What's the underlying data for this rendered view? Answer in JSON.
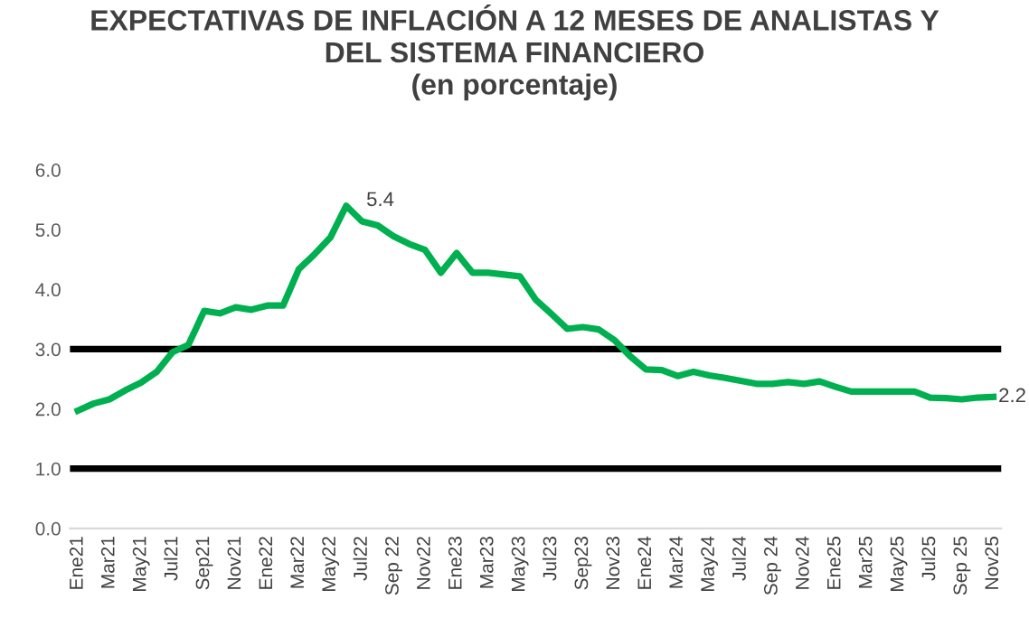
{
  "chart_data": {
    "type": "line",
    "title": "EXPECTATIVAS DE INFLACIÓN A 12 MESES DE ANALISTAS Y\nDEL SISTEMA FINANCIERO\n(en porcentaje)",
    "categories": [
      "Ene21",
      null,
      "Mar21",
      null,
      "May21",
      null,
      "Jul21",
      null,
      "Sep21",
      null,
      "Nov21",
      null,
      "Ene22",
      null,
      "Mar22",
      null,
      "May22",
      null,
      "Jul22",
      null,
      "Sep 22",
      null,
      "Nov22",
      null,
      "Ene23",
      null,
      "Mar23",
      null,
      "May23",
      null,
      "Jul23",
      null,
      "Sep23",
      null,
      "Nov23",
      null,
      "Ene24",
      null,
      "Mar24",
      null,
      "May24",
      null,
      "Jul24",
      null,
      "Sep 24",
      null,
      "Nov24",
      null,
      "Ene25",
      null,
      "Mar25",
      null,
      "May25",
      null,
      "Jul25",
      null,
      "Sep 25",
      null,
      "Nov25"
    ],
    "series": [
      {
        "color": "#00b050",
        "values": [
          1.97,
          2.09,
          2.16,
          2.31,
          2.44,
          2.62,
          2.95,
          3.07,
          3.64,
          3.6,
          3.7,
          3.66,
          3.73,
          3.73,
          4.34,
          4.59,
          4.87,
          5.4,
          5.14,
          5.07,
          4.89,
          4.76,
          4.66,
          4.28,
          4.61,
          4.28,
          4.28,
          4.25,
          4.22,
          3.83,
          3.59,
          3.34,
          3.37,
          3.33,
          3.15,
          2.88,
          2.66,
          2.65,
          2.55,
          2.62,
          2.56,
          2.52,
          2.47,
          2.42,
          2.42,
          2.45,
          2.42,
          2.46,
          2.37,
          2.29,
          2.29,
          2.29,
          2.29,
          2.29,
          2.19,
          2.18,
          2.16,
          2.19,
          2.2
        ],
        "value_labels": [
          null,
          null,
          null,
          null,
          null,
          null,
          null,
          null,
          null,
          null,
          null,
          null,
          null,
          null,
          null,
          null,
          null,
          "5.4",
          null,
          null,
          null,
          null,
          null,
          null,
          null,
          null,
          null,
          null,
          null,
          null,
          null,
          null,
          null,
          null,
          null,
          null,
          null,
          null,
          null,
          null,
          null,
          null,
          null,
          null,
          null,
          null,
          null,
          null,
          null,
          null,
          null,
          null,
          null,
          null,
          null,
          null,
          null,
          null,
          "2.2"
        ]
      }
    ],
    "ylim": [
      0,
      6
    ],
    "yticks": [
      {
        "value": 0,
        "label": "0.0"
      },
      {
        "value": 1,
        "label": "1.0"
      },
      {
        "value": 2,
        "label": "2.0"
      },
      {
        "value": 3,
        "label": "3.0"
      },
      {
        "value": 4,
        "label": "4.0"
      },
      {
        "value": 5,
        "label": "5.0"
      },
      {
        "value": 6,
        "label": "6.0"
      }
    ],
    "ref_lines": [
      {
        "axis": "y",
        "value": 3,
        "color": "#000000"
      },
      {
        "axis": "y",
        "value": 1,
        "color": "#000000"
      }
    ],
    "grid": false,
    "legend": false,
    "marker": "none",
    "line_style": "solid"
  }
}
